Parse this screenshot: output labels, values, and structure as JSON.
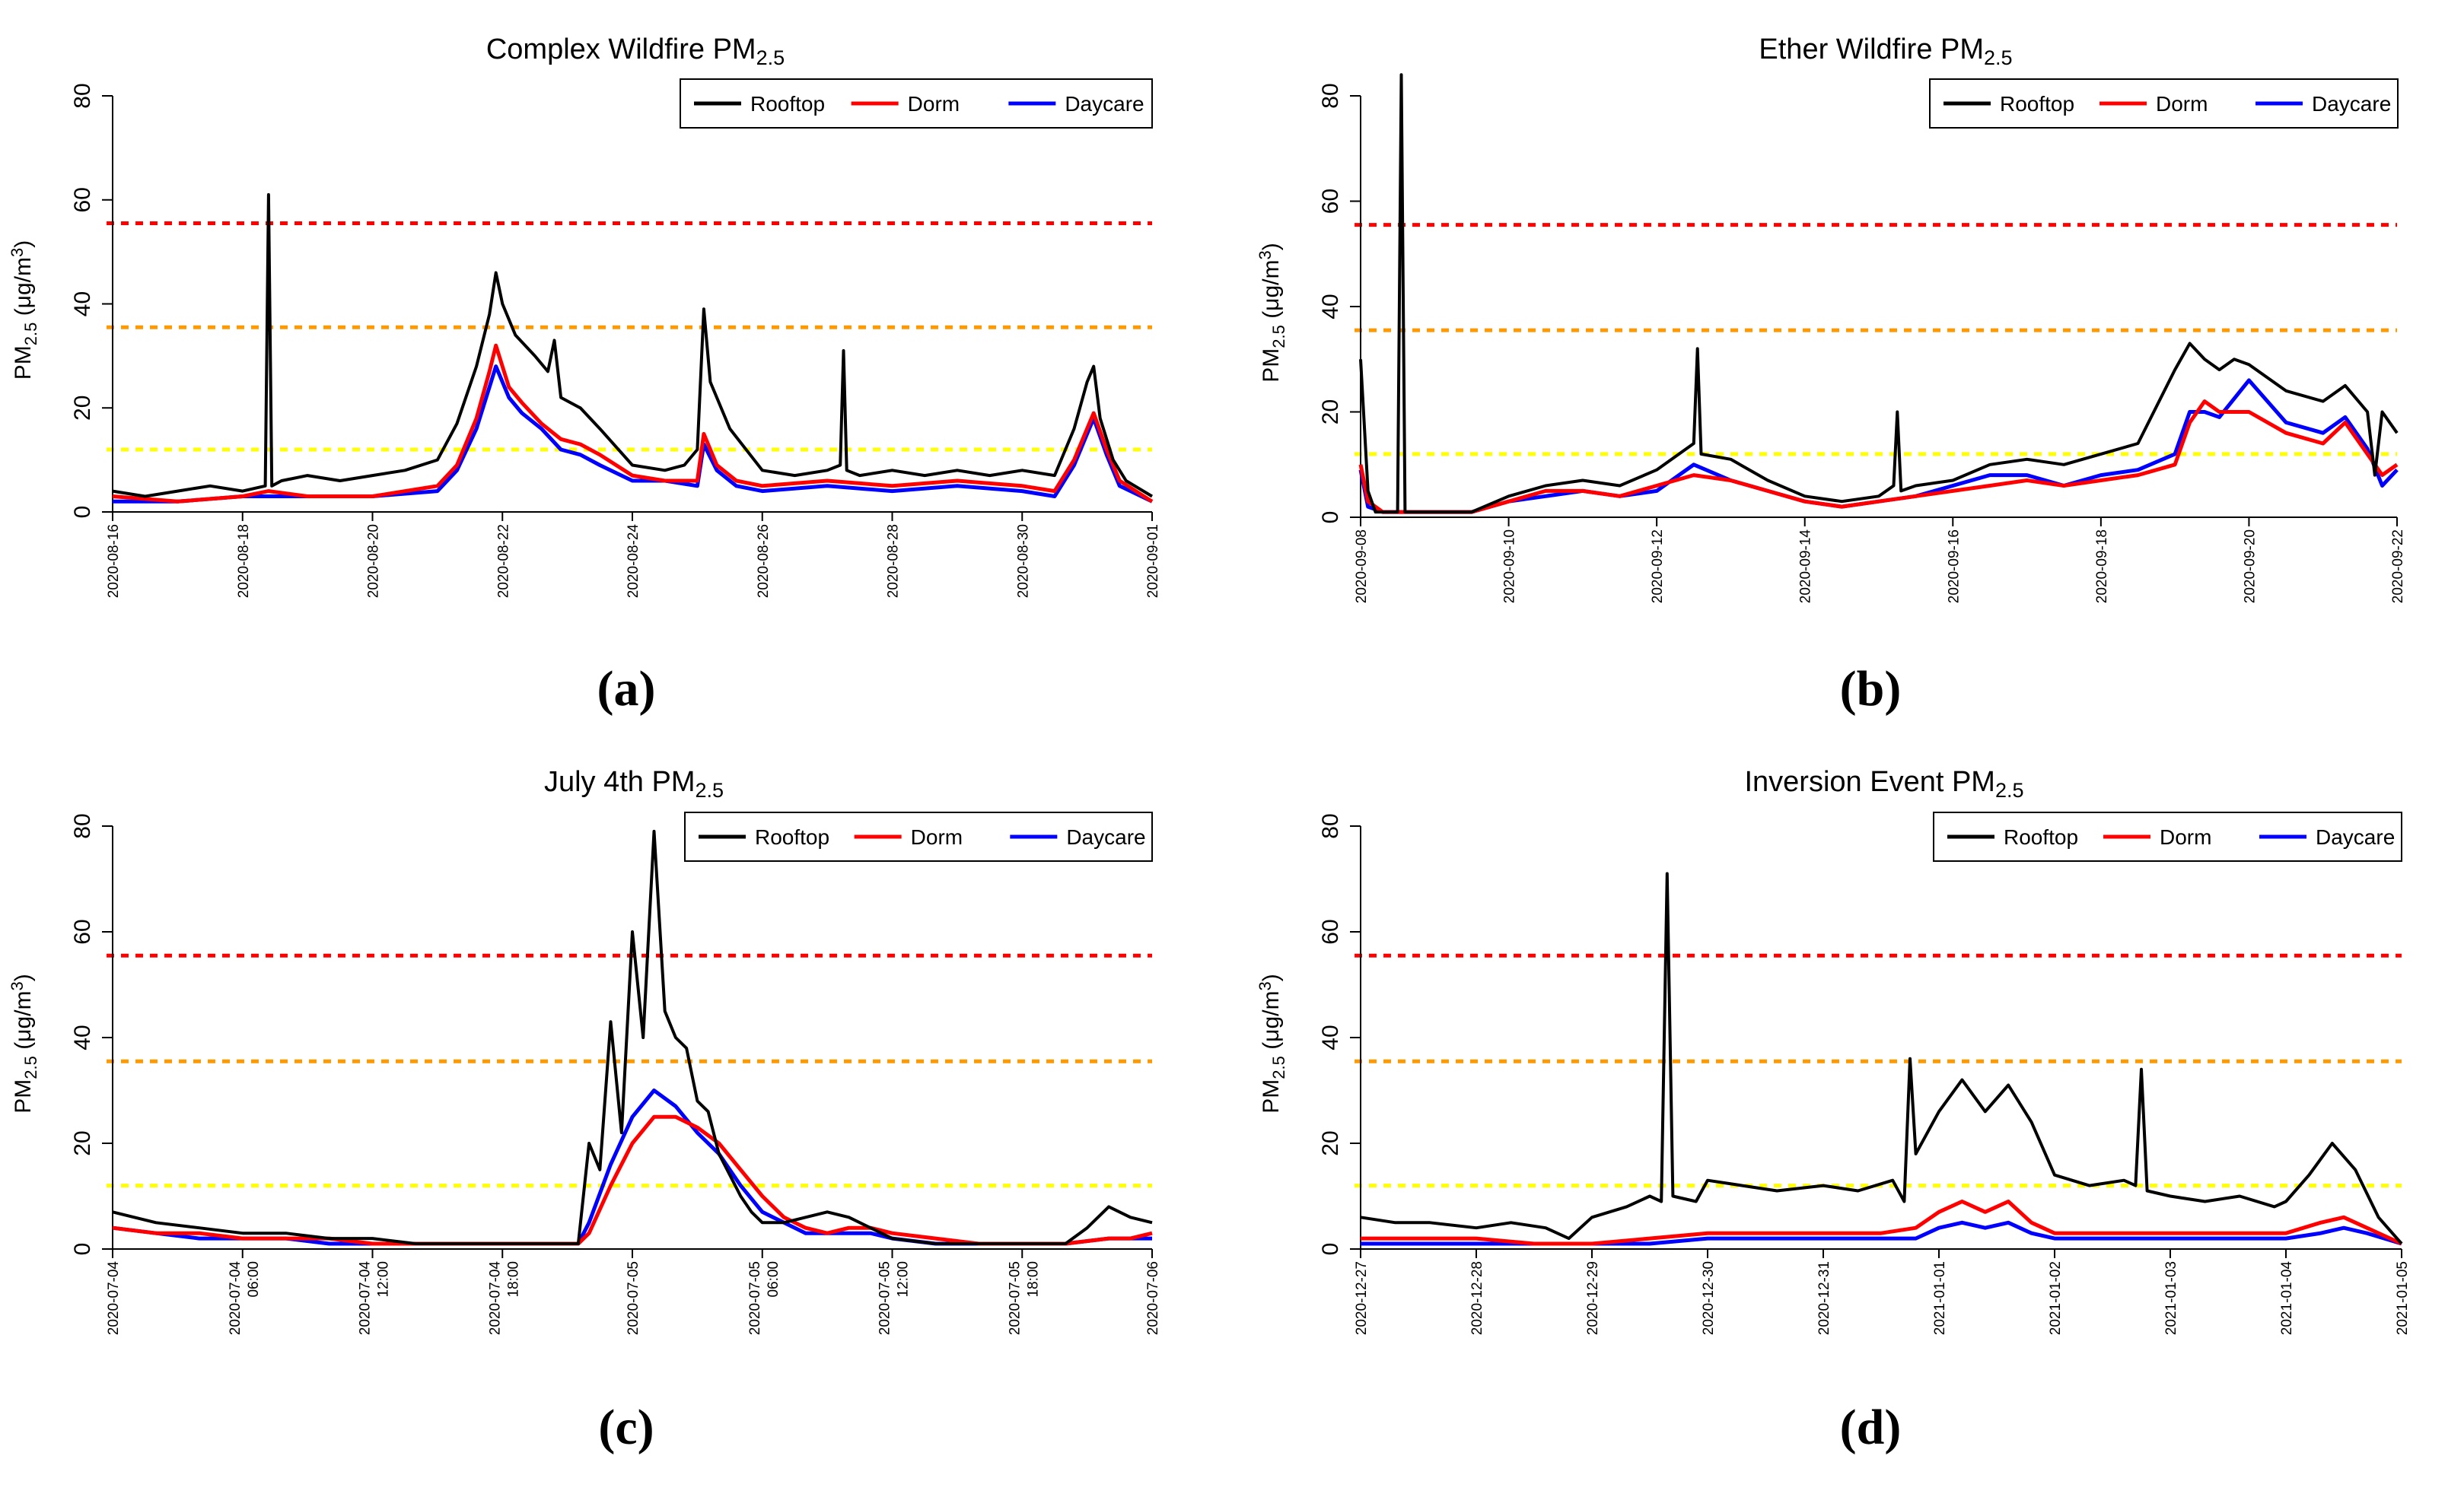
{
  "figure": {
    "panel_labels": [
      "(a)",
      "(b)",
      "(c)",
      "(d)"
    ]
  },
  "legend_labels": [
    "Rooftop",
    "Dorm",
    "Daycare"
  ],
  "colors": {
    "Rooftop": "#000000",
    "Dorm": "#ff0000",
    "Daycare": "#0000ff",
    "ref_55": "#ff0000",
    "ref_35": "#ff9900",
    "ref_12": "#ffff00"
  },
  "chart_data": [
    {
      "type": "line",
      "title": "Complex Wildfire PM",
      "title_sub": "2.5",
      "ylabel": "PM2.5 (μg/m3)",
      "xlabel": "",
      "ylim": [
        0,
        80
      ],
      "yticks": [
        0,
        20,
        40,
        60,
        80
      ],
      "xlim": [
        0,
        16
      ],
      "xtick_labels": [
        "2020-08-16",
        "2020-08-18",
        "2020-08-20",
        "2020-08-22",
        "2020-08-24",
        "2020-08-26",
        "2020-08-28",
        "2020-08-30",
        "2020-09-01"
      ],
      "xtick_pos": [
        0,
        2,
        4,
        6,
        8,
        10,
        12,
        14,
        16
      ],
      "reference_lines": [
        55.5,
        35.5,
        12
      ],
      "legend": [
        "Rooftop",
        "Dorm",
        "Daycare"
      ],
      "series": [
        {
          "name": "Rooftop",
          "x": [
            0,
            0.5,
            1,
            1.5,
            2,
            2.35,
            2.4,
            2.45,
            2.6,
            3,
            3.5,
            4,
            4.5,
            5,
            5.3,
            5.6,
            5.8,
            5.9,
            6,
            6.2,
            6.5,
            6.7,
            6.8,
            6.9,
            7.2,
            7.5,
            8,
            8.5,
            8.8,
            9.0,
            9.1,
            9.2,
            9.5,
            10,
            10.5,
            11,
            11.2,
            11.25,
            11.3,
            11.5,
            12,
            12.5,
            13,
            13.5,
            14,
            14.5,
            14.8,
            15,
            15.1,
            15.2,
            15.4,
            15.6,
            16
          ],
          "y": [
            4,
            3,
            4,
            5,
            4,
            5,
            61,
            5,
            6,
            7,
            6,
            7,
            8,
            10,
            17,
            28,
            38,
            46,
            40,
            34,
            30,
            27,
            33,
            22,
            20,
            16,
            9,
            8,
            9,
            12,
            39,
            25,
            16,
            8,
            7,
            8,
            9,
            31,
            8,
            7,
            8,
            7,
            8,
            7,
            8,
            7,
            16,
            25,
            28,
            18,
            10,
            6,
            3
          ]
        },
        {
          "name": "Dorm",
          "x": [
            0,
            1,
            2,
            2.4,
            3,
            4,
            5,
            5.3,
            5.6,
            5.8,
            5.9,
            6.1,
            6.3,
            6.6,
            6.9,
            7.2,
            7.5,
            8,
            8.5,
            9,
            9.1,
            9.3,
            9.6,
            10,
            11,
            12,
            13,
            14,
            14.5,
            14.8,
            15,
            15.1,
            15.3,
            15.5,
            16
          ],
          "y": [
            3,
            2,
            3,
            4,
            3,
            3,
            5,
            9,
            18,
            27,
            32,
            24,
            21,
            17,
            14,
            13,
            11,
            7,
            6,
            6,
            15,
            9,
            6,
            5,
            6,
            5,
            6,
            5,
            4,
            10,
            16,
            19,
            12,
            6,
            2
          ]
        },
        {
          "name": "Daycare",
          "x": [
            0,
            1,
            2,
            2.4,
            3,
            4,
            5,
            5.3,
            5.6,
            5.8,
            5.9,
            6.1,
            6.3,
            6.6,
            6.9,
            7.2,
            7.5,
            8,
            8.5,
            9,
            9.1,
            9.3,
            9.6,
            10,
            11,
            12,
            13,
            14,
            14.5,
            14.8,
            15,
            15.1,
            15.3,
            15.5,
            16
          ],
          "y": [
            2,
            2,
            3,
            3,
            3,
            3,
            4,
            8,
            16,
            24,
            28,
            22,
            19,
            16,
            12,
            11,
            9,
            6,
            6,
            5,
            13,
            8,
            5,
            4,
            5,
            4,
            5,
            4,
            3,
            9,
            15,
            18,
            11,
            5,
            2
          ]
        }
      ]
    },
    {
      "type": "line",
      "title": "Ether Wildfire PM",
      "title_sub": "2.5",
      "ylabel": "PM2.5 (μg/m3)",
      "xlabel": "",
      "ylim": [
        0,
        80
      ],
      "yticks": [
        0,
        20,
        40,
        60,
        80
      ],
      "xlim": [
        0,
        14
      ],
      "xtick_labels": [
        "2020-09-08",
        "2020-09-10",
        "2020-09-12",
        "2020-09-14",
        "2020-09-16",
        "2020-09-18",
        "2020-09-20",
        "2020-09-22"
      ],
      "xtick_pos": [
        0,
        2,
        4,
        6,
        8,
        10,
        12,
        14
      ],
      "reference_lines": [
        55.5,
        35.5,
        12
      ],
      "legend": [
        "Rooftop",
        "Dorm",
        "Daycare"
      ],
      "series": [
        {
          "name": "Rooftop",
          "x": [
            0,
            0.1,
            0.2,
            0.5,
            0.55,
            0.6,
            1,
            1.5,
            2,
            2.5,
            3,
            3.5,
            4,
            4.5,
            4.55,
            4.6,
            5,
            5.5,
            6,
            6.5,
            7,
            7.2,
            7.25,
            7.3,
            7.5,
            8,
            8.5,
            9,
            9.5,
            10,
            10.5,
            11,
            11.2,
            11.4,
            11.6,
            11.8,
            12,
            12.5,
            13,
            13.3,
            13.6,
            13.7,
            13.8,
            14
          ],
          "y": [
            30,
            5,
            1,
            1,
            84,
            1,
            1,
            1,
            4,
            6,
            7,
            6,
            9,
            14,
            32,
            12,
            11,
            7,
            4,
            3,
            4,
            6,
            20,
            5,
            6,
            7,
            10,
            11,
            10,
            12,
            14,
            28,
            33,
            30,
            28,
            30,
            29,
            24,
            22,
            25,
            20,
            8,
            20,
            16
          ]
        },
        {
          "name": "Dorm",
          "x": [
            0,
            0.1,
            0.3,
            0.6,
            1,
            1.5,
            2,
            2.5,
            3,
            3.5,
            4,
            4.5,
            5,
            5.5,
            6,
            6.5,
            7,
            7.5,
            8,
            8.5,
            9,
            9.5,
            10,
            10.5,
            11,
            11.2,
            11.4,
            11.6,
            12,
            12.5,
            13,
            13.3,
            13.6,
            13.8,
            14
          ],
          "y": [
            10,
            3,
            1,
            1,
            1,
            1,
            3,
            5,
            5,
            4,
            6,
            8,
            7,
            5,
            3,
            2,
            3,
            4,
            5,
            6,
            7,
            6,
            7,
            8,
            10,
            18,
            22,
            20,
            20,
            16,
            14,
            18,
            12,
            8,
            10
          ]
        },
        {
          "name": "Daycare",
          "x": [
            0,
            0.1,
            0.3,
            0.6,
            1,
            1.5,
            2,
            2.5,
            3,
            3.5,
            4,
            4.5,
            5,
            5.5,
            6,
            6.5,
            7,
            7.5,
            8,
            8.5,
            9,
            9.5,
            10,
            10.5,
            11,
            11.2,
            11.4,
            11.6,
            12,
            12.5,
            13,
            13.3,
            13.6,
            13.8,
            14
          ],
          "y": [
            9,
            2,
            1,
            1,
            1,
            1,
            3,
            4,
            5,
            4,
            5,
            10,
            7,
            5,
            3,
            2,
            3,
            4,
            6,
            8,
            8,
            6,
            8,
            9,
            12,
            20,
            20,
            19,
            26,
            18,
            16,
            19,
            13,
            6,
            9
          ]
        }
      ]
    },
    {
      "type": "line",
      "title": "July 4th PM",
      "title_sub": "2.5",
      "ylabel": "PM2.5 (μg/m3)",
      "xlabel": "",
      "ylim": [
        0,
        80
      ],
      "yticks": [
        0,
        20,
        40,
        60,
        80
      ],
      "xlim": [
        0,
        48
      ],
      "xtick_labels": [
        "2020-07-04",
        "2020-07-04\n06:00",
        "2020-07-04\n12:00",
        "2020-07-04\n18:00",
        "2020-07-05",
        "2020-07-05\n06:00",
        "2020-07-05\n12:00",
        "2020-07-05\n18:00",
        "2020-07-06"
      ],
      "xtick_pos": [
        0,
        6,
        12,
        18,
        24,
        30,
        36,
        42,
        48
      ],
      "reference_lines": [
        55.5,
        35.5,
        12
      ],
      "legend": [
        "Rooftop",
        "Dorm",
        "Daycare"
      ],
      "series": [
        {
          "name": "Rooftop",
          "x": [
            0,
            2,
            4,
            6,
            8,
            10,
            12,
            14,
            16,
            18,
            20,
            21.5,
            22,
            22.5,
            23,
            23.5,
            24,
            24.5,
            25,
            25.5,
            26,
            26.5,
            27,
            27.5,
            28,
            28.5,
            29,
            29.5,
            30,
            31,
            32,
            33,
            34,
            35,
            36,
            38,
            40,
            42,
            44,
            45,
            46,
            47,
            48
          ],
          "y": [
            7,
            5,
            4,
            3,
            3,
            2,
            2,
            1,
            1,
            1,
            1,
            1,
            20,
            15,
            43,
            22,
            60,
            40,
            79,
            45,
            40,
            38,
            28,
            26,
            18,
            14,
            10,
            7,
            5,
            5,
            6,
            7,
            6,
            4,
            2,
            1,
            1,
            1,
            1,
            4,
            8,
            6,
            5
          ]
        },
        {
          "name": "Dorm",
          "x": [
            0,
            2,
            4,
            6,
            8,
            10,
            12,
            14,
            16,
            18,
            20,
            21.5,
            22,
            23,
            24,
            25,
            26,
            27,
            28,
            29,
            30,
            31,
            32,
            33,
            34,
            35,
            36,
            38,
            40,
            42,
            44,
            46,
            47,
            48
          ],
          "y": [
            4,
            3,
            3,
            2,
            2,
            2,
            1,
            1,
            1,
            1,
            1,
            1,
            3,
            12,
            20,
            25,
            25,
            23,
            20,
            15,
            10,
            6,
            4,
            3,
            4,
            4,
            3,
            2,
            1,
            1,
            1,
            2,
            2,
            3
          ]
        },
        {
          "name": "Daycare",
          "x": [
            0,
            2,
            4,
            6,
            8,
            10,
            12,
            14,
            16,
            18,
            20,
            21.5,
            22,
            23,
            24,
            25,
            26,
            27,
            28,
            29,
            30,
            31,
            32,
            33,
            34,
            35,
            36,
            38,
            40,
            42,
            44,
            46,
            47,
            48
          ],
          "y": [
            4,
            3,
            2,
            2,
            2,
            1,
            1,
            1,
            1,
            1,
            1,
            1,
            5,
            16,
            25,
            30,
            27,
            22,
            18,
            12,
            7,
            5,
            3,
            3,
            3,
            3,
            2,
            1,
            1,
            1,
            1,
            2,
            2,
            2
          ]
        }
      ]
    },
    {
      "type": "line",
      "title": "Inversion Event PM",
      "title_sub": "2.5",
      "ylabel": "PM2.5 (μg/m3)",
      "xlabel": "",
      "ylim": [
        0,
        80
      ],
      "yticks": [
        0,
        20,
        40,
        60,
        80
      ],
      "xlim": [
        0,
        9
      ],
      "xtick_labels": [
        "2020-12-27",
        "2020-12-28",
        "2020-12-29",
        "2020-12-30",
        "2020-12-31",
        "2021-01-01",
        "2021-01-02",
        "2021-01-03",
        "2021-01-04",
        "2021-01-05"
      ],
      "xtick_pos": [
        0,
        1,
        2,
        3,
        4,
        5,
        6,
        7,
        8,
        9
      ],
      "reference_lines": [
        55.5,
        35.5,
        12
      ],
      "legend": [
        "Rooftop",
        "Dorm",
        "Daycare"
      ],
      "series": [
        {
          "name": "Rooftop",
          "x": [
            0,
            0.3,
            0.6,
            1,
            1.3,
            1.6,
            1.8,
            2,
            2.3,
            2.5,
            2.6,
            2.65,
            2.7,
            2.9,
            3,
            3.3,
            3.6,
            4,
            4.3,
            4.6,
            4.7,
            4.75,
            4.8,
            5,
            5.2,
            5.4,
            5.6,
            5.8,
            6,
            6.3,
            6.6,
            6.7,
            6.75,
            6.8,
            7,
            7.3,
            7.6,
            7.9,
            8,
            8.2,
            8.4,
            8.6,
            8.8,
            9
          ],
          "y": [
            6,
            5,
            5,
            4,
            5,
            4,
            2,
            6,
            8,
            10,
            9,
            71,
            10,
            9,
            13,
            12,
            11,
            12,
            11,
            13,
            9,
            36,
            18,
            26,
            32,
            26,
            31,
            24,
            14,
            12,
            13,
            12,
            34,
            11,
            10,
            9,
            10,
            8,
            9,
            14,
            20,
            15,
            6,
            1
          ]
        },
        {
          "name": "Dorm",
          "x": [
            0,
            0.5,
            1,
            1.5,
            2,
            2.5,
            3,
            3.5,
            4,
            4.5,
            4.8,
            5,
            5.2,
            5.4,
            5.6,
            5.8,
            6,
            6.5,
            7,
            7.5,
            8,
            8.3,
            8.5,
            8.7,
            9
          ],
          "y": [
            2,
            2,
            2,
            1,
            1,
            2,
            3,
            3,
            3,
            3,
            4,
            7,
            9,
            7,
            9,
            5,
            3,
            3,
            3,
            3,
            3,
            5,
            6,
            4,
            1
          ]
        },
        {
          "name": "Daycare",
          "x": [
            0,
            0.5,
            1,
            1.5,
            2,
            2.5,
            3,
            3.5,
            4,
            4.5,
            4.8,
            5,
            5.2,
            5.4,
            5.6,
            5.8,
            6,
            6.5,
            7,
            7.5,
            8,
            8.3,
            8.5,
            8.7,
            9
          ],
          "y": [
            1,
            1,
            1,
            1,
            1,
            1,
            2,
            2,
            2,
            2,
            2,
            4,
            5,
            4,
            5,
            3,
            2,
            2,
            2,
            2,
            2,
            3,
            4,
            3,
            1
          ]
        }
      ]
    }
  ]
}
